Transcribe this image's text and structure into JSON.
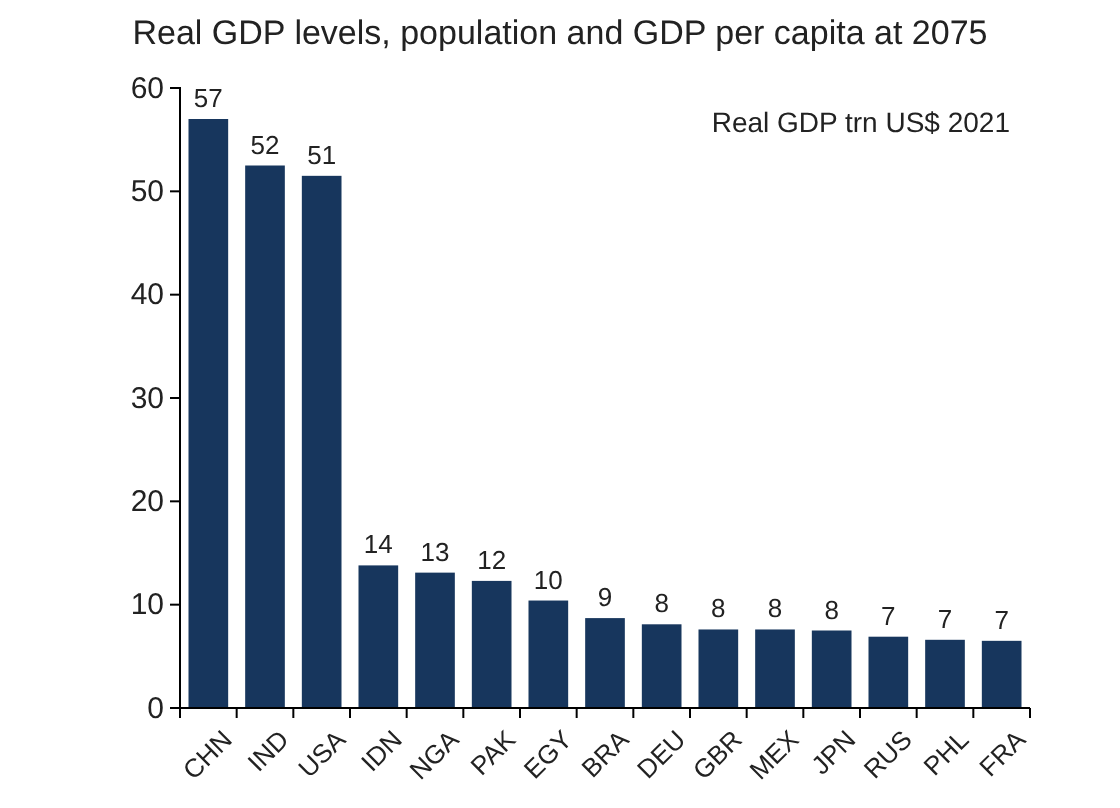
{
  "chart_data": {
    "type": "bar",
    "title": "Real GDP levels, population and GDP per capita at 2075",
    "categories": [
      "CHN",
      "IND",
      "USA",
      "IDN",
      "NGA",
      "PAK",
      "EGY",
      "BRA",
      "DEU",
      "GBR",
      "MEX",
      "JPN",
      "RUS",
      "PHL",
      "FRA"
    ],
    "values": [
      57,
      52.5,
      51.5,
      13.8,
      13.1,
      12.3,
      10.4,
      8.7,
      8.1,
      7.6,
      7.6,
      7.5,
      6.9,
      6.6,
      6.5
    ],
    "value_labels": [
      "57",
      "52",
      "51",
      "14",
      "13",
      "12",
      "10",
      "9",
      "8",
      "8",
      "8",
      "8",
      "7",
      "7",
      "7"
    ],
    "color": "#17365d",
    "ylim": [
      0,
      60
    ],
    "yticks": [
      0,
      10,
      20,
      30,
      40,
      50,
      60
    ],
    "grid": false,
    "annotations": [
      "Real GDP trn US$ 2021"
    ]
  }
}
